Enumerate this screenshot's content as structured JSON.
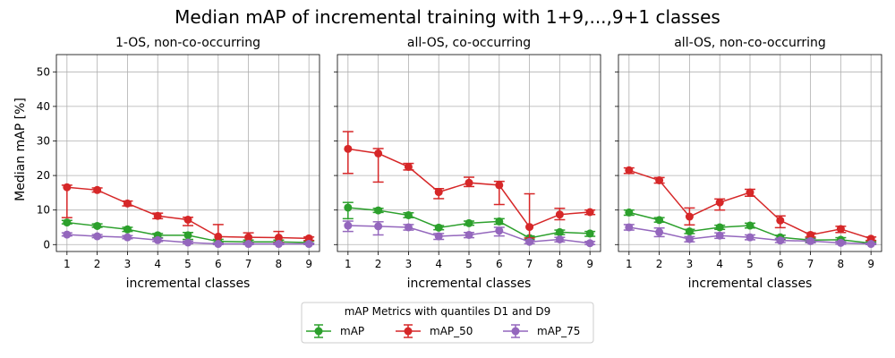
{
  "figure": {
    "title": "Median mAP of incremental training with 1+9,...,9+1 classes",
    "ylabel": "Median mAP [%]"
  },
  "legend": {
    "title": "mAP Metrics with quantiles D1 and D9",
    "entries": [
      "mAP",
      "mAP_50",
      "mAP_75"
    ]
  },
  "colors": {
    "mAP": "#2ca02c",
    "mAP_50": "#d62728",
    "mAP_75": "#9467bd",
    "grid": "#b0b0b0"
  },
  "chart_data": [
    {
      "type": "line",
      "title": "1-OS, non-co-occurring",
      "xlabel": "incremental classes",
      "ylabel": "Median mAP [%]",
      "x": [
        1,
        2,
        3,
        4,
        5,
        6,
        7,
        8,
        9
      ],
      "xlim": [
        0.65,
        9.35
      ],
      "ylim": [
        -2,
        55
      ],
      "yticks": [
        0,
        10,
        20,
        30,
        40,
        50
      ],
      "grid": true,
      "series": [
        {
          "name": "mAP",
          "values": [
            6.4,
            5.4,
            4.4,
            2.7,
            2.7,
            0.9,
            0.8,
            0.8,
            0.6
          ],
          "low": [
            6.0,
            5.0,
            3.8,
            2.0,
            1.5,
            0.5,
            0.4,
            0.4,
            0.3
          ],
          "high": [
            7.0,
            6.0,
            5.0,
            3.2,
            3.5,
            1.5,
            1.3,
            1.3,
            1.0
          ]
        },
        {
          "name": "mAP_50",
          "values": [
            16.6,
            15.8,
            11.9,
            8.3,
            7.2,
            2.3,
            2.1,
            2.0,
            1.8
          ],
          "low": [
            7.8,
            15.2,
            11.2,
            7.5,
            5.5,
            0.3,
            0.5,
            0.6,
            1.2
          ],
          "high": [
            17.2,
            16.4,
            12.6,
            9.1,
            7.9,
            5.8,
            3.4,
            3.8,
            2.2
          ]
        },
        {
          "name": "mAP_75",
          "values": [
            2.9,
            2.4,
            2.1,
            1.3,
            0.6,
            0.2,
            0.2,
            0.2,
            0.2
          ],
          "low": [
            2.5,
            2.0,
            1.7,
            0.9,
            0.3,
            0.0,
            0.0,
            0.0,
            0.0
          ],
          "high": [
            3.4,
            2.9,
            2.6,
            1.8,
            1.0,
            0.4,
            0.5,
            0.5,
            0.4
          ]
        }
      ]
    },
    {
      "type": "line",
      "title": "all-OS, co-occurring",
      "xlabel": "incremental classes",
      "x": [
        1,
        2,
        3,
        4,
        5,
        6,
        7,
        8,
        9
      ],
      "xlim": [
        0.65,
        9.35
      ],
      "ylim": [
        -2,
        55
      ],
      "yticks": [
        0,
        10,
        20,
        30,
        40,
        50
      ],
      "grid": true,
      "series": [
        {
          "name": "mAP",
          "values": [
            10.7,
            9.9,
            8.5,
            4.9,
            6.2,
            6.7,
            1.9,
            3.6,
            3.2
          ],
          "low": [
            7.5,
            9.3,
            7.8,
            4.3,
            5.6,
            5.9,
            1.5,
            2.9,
            2.4
          ],
          "high": [
            12.2,
            10.5,
            9.2,
            5.5,
            6.8,
            7.5,
            2.5,
            4.2,
            3.8
          ]
        },
        {
          "name": "mAP_50",
          "values": [
            27.7,
            26.4,
            22.5,
            15.2,
            17.9,
            17.2,
            5.1,
            8.7,
            9.4
          ],
          "low": [
            20.6,
            18.1,
            21.6,
            13.3,
            16.8,
            11.6,
            1.9,
            7.2,
            8.7
          ],
          "high": [
            32.7,
            27.8,
            23.5,
            16.2,
            19.5,
            18.3,
            14.7,
            10.5,
            10.0
          ]
        },
        {
          "name": "mAP_75",
          "values": [
            5.5,
            5.3,
            5.0,
            2.4,
            2.8,
            4.0,
            0.8,
            1.5,
            0.4
          ],
          "low": [
            3.8,
            2.8,
            4.2,
            1.5,
            2.0,
            2.5,
            0.3,
            0.8,
            0.0
          ],
          "high": [
            6.8,
            6.6,
            5.8,
            3.2,
            3.5,
            5.0,
            1.2,
            2.1,
            0.9
          ]
        }
      ]
    },
    {
      "type": "line",
      "title": "all-OS, non-co-occurring",
      "xlabel": "incremental classes",
      "x": [
        1,
        2,
        3,
        4,
        5,
        6,
        7,
        8,
        9
      ],
      "xlim": [
        0.65,
        9.35
      ],
      "ylim": [
        -2,
        55
      ],
      "yticks": [
        0,
        10,
        20,
        30,
        40,
        50
      ],
      "grid": true,
      "series": [
        {
          "name": "mAP",
          "values": [
            9.3,
            7.1,
            3.8,
            5.0,
            5.5,
            2.1,
            1.3,
            1.4,
            0.4
          ],
          "low": [
            8.5,
            6.5,
            3.2,
            4.4,
            4.8,
            1.5,
            0.8,
            0.8,
            0.2
          ],
          "high": [
            10.0,
            7.8,
            4.4,
            5.6,
            6.2,
            2.7,
            1.8,
            2.0,
            0.8
          ]
        },
        {
          "name": "mAP_50",
          "values": [
            21.5,
            18.6,
            8.1,
            12.2,
            15.1,
            7.0,
            2.8,
            4.5,
            1.7
          ],
          "low": [
            20.6,
            17.8,
            5.7,
            10.0,
            14.0,
            4.9,
            2.2,
            3.5,
            1.2
          ],
          "high": [
            22.2,
            19.4,
            10.6,
            13.2,
            16.0,
            8.3,
            3.4,
            5.3,
            2.2
          ]
        },
        {
          "name": "mAP_75",
          "values": [
            5.0,
            3.6,
            1.6,
            2.6,
            2.1,
            1.2,
            1.0,
            0.5,
            0.2
          ],
          "low": [
            4.2,
            2.3,
            0.8,
            1.8,
            1.4,
            0.6,
            0.5,
            0.1,
            0.0
          ],
          "high": [
            5.8,
            4.8,
            2.3,
            3.4,
            2.8,
            1.8,
            1.5,
            0.9,
            0.4
          ]
        }
      ]
    }
  ]
}
